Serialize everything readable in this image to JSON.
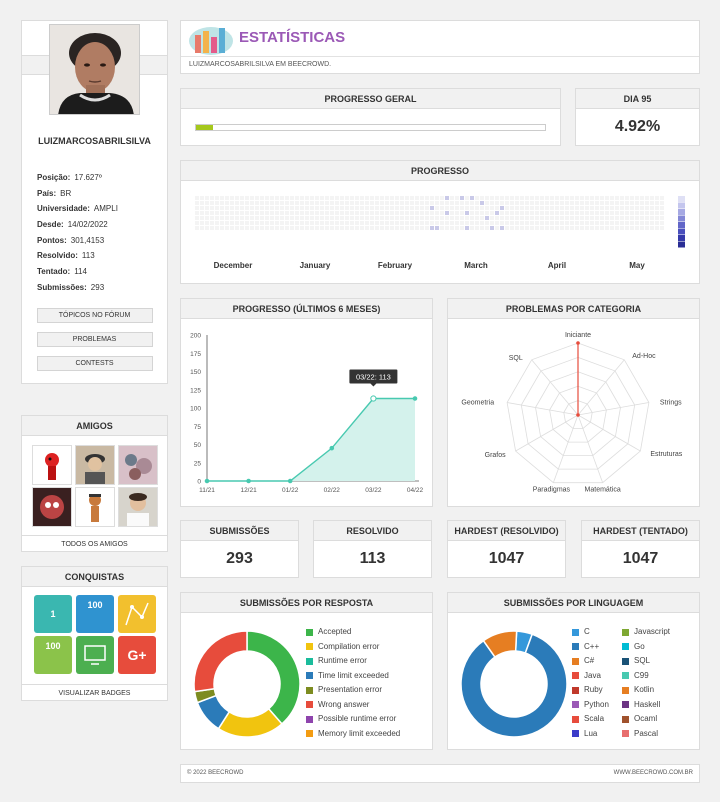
{
  "profile": {
    "username": "LUIZMARCOSABRILSILVA",
    "info": [
      {
        "label": "Posição:",
        "value": "17.627º"
      },
      {
        "label": "País:",
        "value": "BR"
      },
      {
        "label": "Universidade:",
        "value": "AMPLI"
      },
      {
        "label": "Desde:",
        "value": "14/02/2022"
      },
      {
        "label": "Pontos:",
        "value": "301,4153"
      },
      {
        "label": "Resolvido:",
        "value": "113"
      },
      {
        "label": "Tentado:",
        "value": "114"
      },
      {
        "label": "Submissões:",
        "value": "293"
      }
    ],
    "buttons": [
      "TÓPICOS NO FÓRUM",
      "PROBLEMAS",
      "CONTESTS"
    ]
  },
  "friends": {
    "title": "AMIGOS",
    "all_label": "TODOS OS AMIGOS"
  },
  "achievements": {
    "title": "CONQUISTAS",
    "view_label": "VISUALIZAR BADGES",
    "badges": [
      "1",
      "100",
      "",
      "100",
      "",
      "G+"
    ]
  },
  "header": {
    "title": "ESTATÍSTICAS",
    "subtitle": "LUIZMARCOSABRILSILVA EM BEECROWD."
  },
  "progress_general": {
    "title": "PROGRESSO GERAL",
    "fraction": 0.05
  },
  "day": {
    "title": "DIA 95",
    "value": "4.92%"
  },
  "heatmap": {
    "title": "PROGRESSO",
    "months": [
      "December",
      "January",
      "February",
      "March",
      "April",
      "May"
    ]
  },
  "line_chart": {
    "title": "PROGRESSO (ÚLTIMOS 6 MESES)",
    "tooltip": "03/22: 113"
  },
  "radar": {
    "title": "PROBLEMAS POR CATEGORIA"
  },
  "stats": [
    {
      "title": "SUBMISSÕES",
      "value": "293"
    },
    {
      "title": "RESOLVIDO",
      "value": "113"
    },
    {
      "title": "HARDEST (RESOLVIDO)",
      "value": "1047"
    },
    {
      "title": "HARDEST (TENTADO)",
      "value": "1047"
    }
  ],
  "by_answer": {
    "title": "SUBMISSÕES POR RESPOSTA"
  },
  "by_language": {
    "title": "SUBMISSÕES POR LINGUAGEM"
  },
  "footer": {
    "left": "© 2022 BEECROWD",
    "right": "WWW.BEECROWD.COM.BR"
  },
  "colors": {
    "accent_purple": "#9b59b6",
    "progress_green": "#a5c81c",
    "chart_teal": "#48c9b0"
  },
  "chart_data": [
    {
      "type": "line",
      "x": [
        "11/21",
        "12/21",
        "01/22",
        "02/22",
        "03/22",
        "04/22"
      ],
      "values": [
        0,
        0,
        0,
        45,
        113,
        113
      ],
      "ylim": [
        0,
        200
      ],
      "yticks": [
        0,
        25,
        50,
        75,
        100,
        125,
        150,
        175,
        200
      ]
    },
    {
      "type": "radar",
      "categories": [
        "Iniciante",
        "Ad-Hoc",
        "Strings",
        "Estruturas",
        "Matemática",
        "Paradigmas",
        "Grafos",
        "Geometria",
        "SQL"
      ],
      "values": [
        113,
        0,
        0,
        0,
        0,
        0,
        0,
        0,
        0
      ],
      "max": 113
    },
    {
      "type": "pie",
      "categories": [
        "Accepted",
        "Compilation error",
        "Runtime error",
        "Time limit exceeded",
        "Presentation error",
        "Wrong answer",
        "Possible runtime error",
        "Memory limit exceeded"
      ],
      "values": [
        113,
        60,
        0,
        30,
        10,
        80,
        0,
        0
      ],
      "colors": [
        "#3cb54a",
        "#f1c40f",
        "#1abc9c",
        "#2b7bb9",
        "#7d8c20",
        "#e74c3c",
        "#8e44ad",
        "#f39c12"
      ]
    },
    {
      "type": "pie",
      "categories": [
        "C",
        "C++",
        "C#",
        "Java",
        "Ruby",
        "Python",
        "Scala",
        "Lua",
        "Javascript",
        "Go",
        "SQL",
        "C99",
        "Kotlin",
        "Haskell",
        "Ocaml",
        "Pascal"
      ],
      "values": [
        14,
        248,
        0,
        0,
        0,
        0,
        0,
        0,
        0,
        0,
        0,
        0,
        31,
        0,
        0,
        0
      ],
      "colors": [
        "#3498db",
        "#2b7bb9",
        "#e67e22",
        "#e74c3c",
        "#c0392b",
        "#9b59b6",
        "#e74c3c",
        "#3b3bc9",
        "#7ea832",
        "#00bcd4",
        "#1a5276",
        "#48c9b0",
        "#e67e22",
        "#6c3483",
        "#a0522d",
        "#e86e6e"
      ]
    }
  ]
}
